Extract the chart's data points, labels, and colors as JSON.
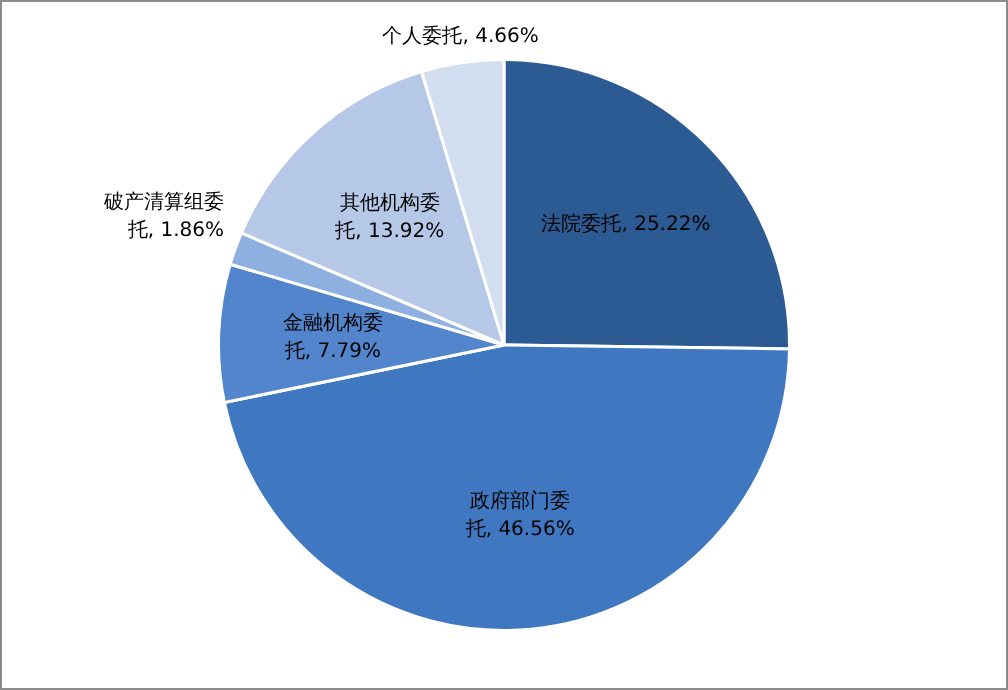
{
  "chart_data": {
    "type": "pie",
    "categories": [
      "法院委托",
      "政府部门委托",
      "金融机构委托",
      "破产清算组委托",
      "其他机构委托",
      "个人委托"
    ],
    "values": [
      25.22,
      46.56,
      7.79,
      1.86,
      13.92,
      4.66
    ],
    "value_labels": [
      "25.22%",
      "46.56%",
      "7.79%",
      "1.86%",
      "13.92%",
      "4.66%"
    ],
    "colors": [
      "#2c5a93",
      "#3f78c0",
      "#5285cb",
      "#8eb0e0",
      "#b5c8e8",
      "#d3ddf0"
    ],
    "legend": false
  }
}
